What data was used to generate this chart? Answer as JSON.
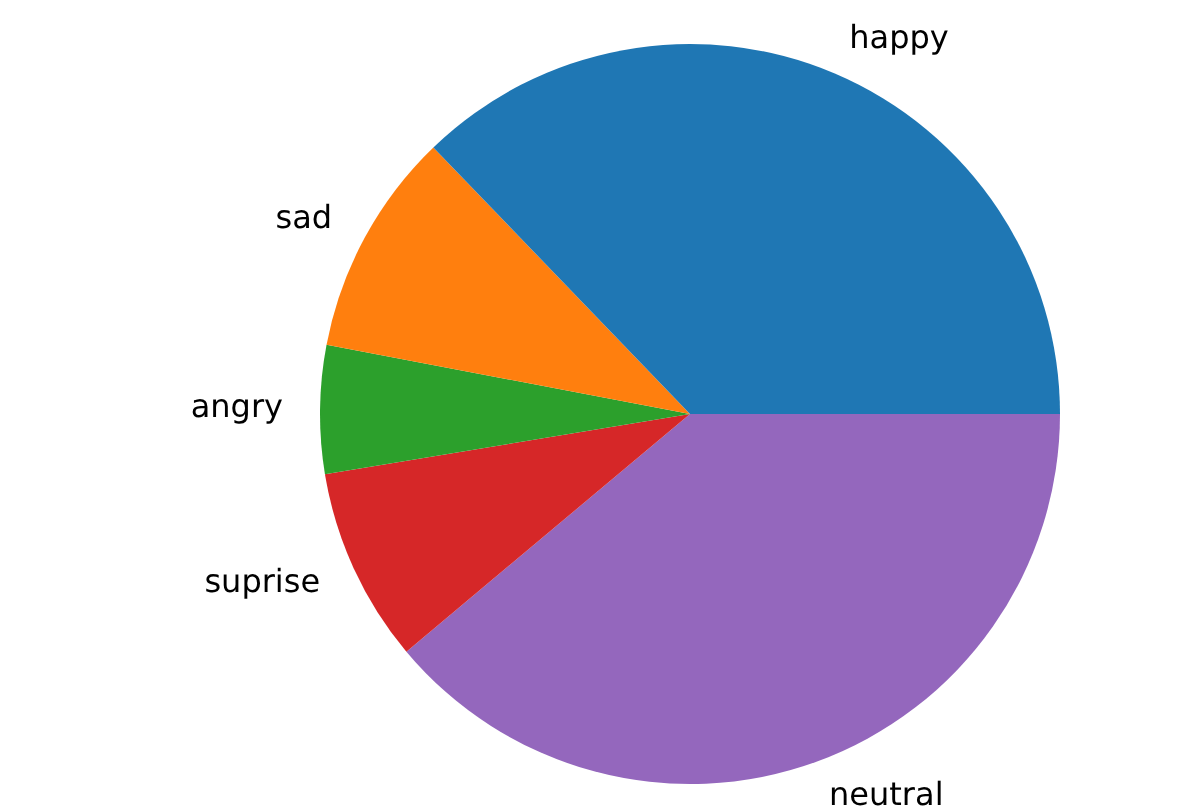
{
  "chart_data": {
    "type": "pie",
    "categories": [
      "happy",
      "sad",
      "angry",
      "suprise",
      "neutral"
    ],
    "values": [
      37.2,
      9.8,
      5.6,
      8.5,
      38.9
    ],
    "colors": [
      "#1f77b4",
      "#ff7f0e",
      "#2ca02c",
      "#d62728",
      "#9467bd"
    ],
    "legend": false
  }
}
